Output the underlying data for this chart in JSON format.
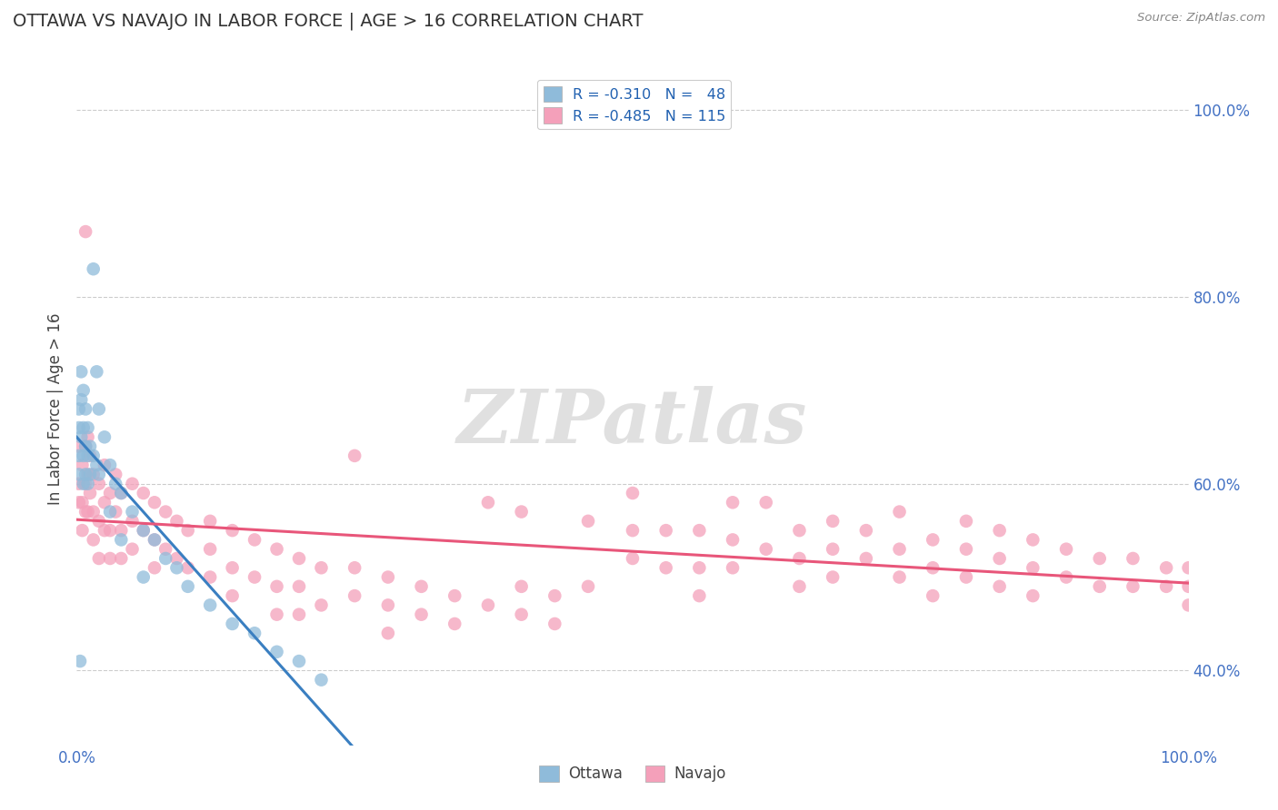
{
  "title": "OTTAWA VS NAVAJO IN LABOR FORCE | AGE > 16 CORRELATION CHART",
  "source_text": "Source: ZipAtlas.com",
  "ylabel": "In Labor Force | Age > 16",
  "xlim": [
    0.0,
    1.0
  ],
  "ylim": [
    0.32,
    1.04
  ],
  "y_tick_values": [
    0.4,
    0.6,
    0.8,
    1.0
  ],
  "y_tick_labels": [
    "40.0%",
    "60.0%",
    "80.0%",
    "100.0%"
  ],
  "watermark": "ZIPatlas",
  "legend_ottawa_r": "-0.310",
  "legend_ottawa_n": "48",
  "legend_navajo_r": "-0.485",
  "legend_navajo_n": "115",
  "ottawa_color": "#8FBBDA",
  "navajo_color": "#F4A0BA",
  "ottawa_line_color": "#3A7FC1",
  "navajo_line_color": "#E8567A",
  "dashed_line_color": "#BBBBBB",
  "ottawa_scatter": [
    [
      0.002,
      0.66
    ],
    [
      0.002,
      0.63
    ],
    [
      0.002,
      0.61
    ],
    [
      0.002,
      0.68
    ],
    [
      0.004,
      0.72
    ],
    [
      0.004,
      0.69
    ],
    [
      0.004,
      0.65
    ],
    [
      0.006,
      0.7
    ],
    [
      0.006,
      0.66
    ],
    [
      0.006,
      0.63
    ],
    [
      0.006,
      0.6
    ],
    [
      0.008,
      0.68
    ],
    [
      0.008,
      0.64
    ],
    [
      0.008,
      0.61
    ],
    [
      0.01,
      0.66
    ],
    [
      0.01,
      0.63
    ],
    [
      0.01,
      0.6
    ],
    [
      0.012,
      0.64
    ],
    [
      0.012,
      0.61
    ],
    [
      0.015,
      0.83
    ],
    [
      0.015,
      0.63
    ],
    [
      0.018,
      0.72
    ],
    [
      0.018,
      0.62
    ],
    [
      0.02,
      0.68
    ],
    [
      0.02,
      0.61
    ],
    [
      0.025,
      0.65
    ],
    [
      0.03,
      0.62
    ],
    [
      0.03,
      0.57
    ],
    [
      0.035,
      0.6
    ],
    [
      0.04,
      0.59
    ],
    [
      0.04,
      0.54
    ],
    [
      0.05,
      0.57
    ],
    [
      0.06,
      0.55
    ],
    [
      0.06,
      0.5
    ],
    [
      0.07,
      0.54
    ],
    [
      0.08,
      0.52
    ],
    [
      0.09,
      0.51
    ],
    [
      0.1,
      0.49
    ],
    [
      0.12,
      0.47
    ],
    [
      0.14,
      0.45
    ],
    [
      0.16,
      0.44
    ],
    [
      0.18,
      0.42
    ],
    [
      0.2,
      0.41
    ],
    [
      0.22,
      0.39
    ],
    [
      0.003,
      0.41
    ]
  ],
  "navajo_scatter": [
    [
      0.002,
      0.6
    ],
    [
      0.002,
      0.64
    ],
    [
      0.002,
      0.58
    ],
    [
      0.005,
      0.62
    ],
    [
      0.005,
      0.58
    ],
    [
      0.005,
      0.55
    ],
    [
      0.008,
      0.87
    ],
    [
      0.008,
      0.64
    ],
    [
      0.008,
      0.6
    ],
    [
      0.008,
      0.57
    ],
    [
      0.01,
      0.65
    ],
    [
      0.01,
      0.61
    ],
    [
      0.01,
      0.57
    ],
    [
      0.012,
      0.63
    ],
    [
      0.012,
      0.59
    ],
    [
      0.015,
      0.61
    ],
    [
      0.015,
      0.57
    ],
    [
      0.015,
      0.54
    ],
    [
      0.02,
      0.6
    ],
    [
      0.02,
      0.56
    ],
    [
      0.02,
      0.52
    ],
    [
      0.025,
      0.62
    ],
    [
      0.025,
      0.58
    ],
    [
      0.025,
      0.55
    ],
    [
      0.03,
      0.59
    ],
    [
      0.03,
      0.55
    ],
    [
      0.03,
      0.52
    ],
    [
      0.035,
      0.61
    ],
    [
      0.035,
      0.57
    ],
    [
      0.04,
      0.59
    ],
    [
      0.04,
      0.55
    ],
    [
      0.04,
      0.52
    ],
    [
      0.05,
      0.6
    ],
    [
      0.05,
      0.56
    ],
    [
      0.05,
      0.53
    ],
    [
      0.06,
      0.59
    ],
    [
      0.06,
      0.55
    ],
    [
      0.07,
      0.58
    ],
    [
      0.07,
      0.54
    ],
    [
      0.07,
      0.51
    ],
    [
      0.08,
      0.57
    ],
    [
      0.08,
      0.53
    ],
    [
      0.09,
      0.56
    ],
    [
      0.09,
      0.52
    ],
    [
      0.1,
      0.55
    ],
    [
      0.1,
      0.51
    ],
    [
      0.12,
      0.56
    ],
    [
      0.12,
      0.53
    ],
    [
      0.12,
      0.5
    ],
    [
      0.14,
      0.55
    ],
    [
      0.14,
      0.51
    ],
    [
      0.14,
      0.48
    ],
    [
      0.16,
      0.54
    ],
    [
      0.16,
      0.5
    ],
    [
      0.18,
      0.53
    ],
    [
      0.18,
      0.49
    ],
    [
      0.18,
      0.46
    ],
    [
      0.2,
      0.52
    ],
    [
      0.2,
      0.49
    ],
    [
      0.2,
      0.46
    ],
    [
      0.22,
      0.51
    ],
    [
      0.22,
      0.47
    ],
    [
      0.25,
      0.63
    ],
    [
      0.25,
      0.51
    ],
    [
      0.25,
      0.48
    ],
    [
      0.28,
      0.5
    ],
    [
      0.28,
      0.47
    ],
    [
      0.28,
      0.44
    ],
    [
      0.31,
      0.49
    ],
    [
      0.31,
      0.46
    ],
    [
      0.34,
      0.48
    ],
    [
      0.34,
      0.45
    ],
    [
      0.37,
      0.58
    ],
    [
      0.37,
      0.47
    ],
    [
      0.4,
      0.57
    ],
    [
      0.4,
      0.49
    ],
    [
      0.4,
      0.46
    ],
    [
      0.43,
      0.48
    ],
    [
      0.43,
      0.45
    ],
    [
      0.46,
      0.56
    ],
    [
      0.46,
      0.49
    ],
    [
      0.5,
      0.59
    ],
    [
      0.5,
      0.55
    ],
    [
      0.5,
      0.52
    ],
    [
      0.53,
      0.55
    ],
    [
      0.53,
      0.51
    ],
    [
      0.56,
      0.55
    ],
    [
      0.56,
      0.51
    ],
    [
      0.56,
      0.48
    ],
    [
      0.59,
      0.58
    ],
    [
      0.59,
      0.54
    ],
    [
      0.59,
      0.51
    ],
    [
      0.62,
      0.58
    ],
    [
      0.62,
      0.53
    ],
    [
      0.65,
      0.55
    ],
    [
      0.65,
      0.52
    ],
    [
      0.65,
      0.49
    ],
    [
      0.68,
      0.56
    ],
    [
      0.68,
      0.53
    ],
    [
      0.68,
      0.5
    ],
    [
      0.71,
      0.55
    ],
    [
      0.71,
      0.52
    ],
    [
      0.74,
      0.57
    ],
    [
      0.74,
      0.53
    ],
    [
      0.74,
      0.5
    ],
    [
      0.77,
      0.54
    ],
    [
      0.77,
      0.51
    ],
    [
      0.77,
      0.48
    ],
    [
      0.8,
      0.56
    ],
    [
      0.8,
      0.53
    ],
    [
      0.8,
      0.5
    ],
    [
      0.83,
      0.55
    ],
    [
      0.83,
      0.52
    ],
    [
      0.83,
      0.49
    ],
    [
      0.86,
      0.54
    ],
    [
      0.86,
      0.51
    ],
    [
      0.86,
      0.48
    ],
    [
      0.89,
      0.53
    ],
    [
      0.89,
      0.5
    ],
    [
      0.92,
      0.52
    ],
    [
      0.92,
      0.49
    ],
    [
      0.95,
      0.52
    ],
    [
      0.95,
      0.49
    ],
    [
      0.98,
      0.51
    ],
    [
      0.98,
      0.49
    ],
    [
      1.0,
      0.51
    ],
    [
      1.0,
      0.49
    ],
    [
      1.0,
      0.47
    ]
  ],
  "background_color": "#FFFFFF",
  "grid_color": "#CCCCCC",
  "title_color": "#333333",
  "tick_color": "#4472C4",
  "watermark_color": "#D0D0D0",
  "ottawa_line_x_end": 0.25,
  "navajo_line_y_start": 0.565,
  "navajo_line_y_end": 0.49
}
